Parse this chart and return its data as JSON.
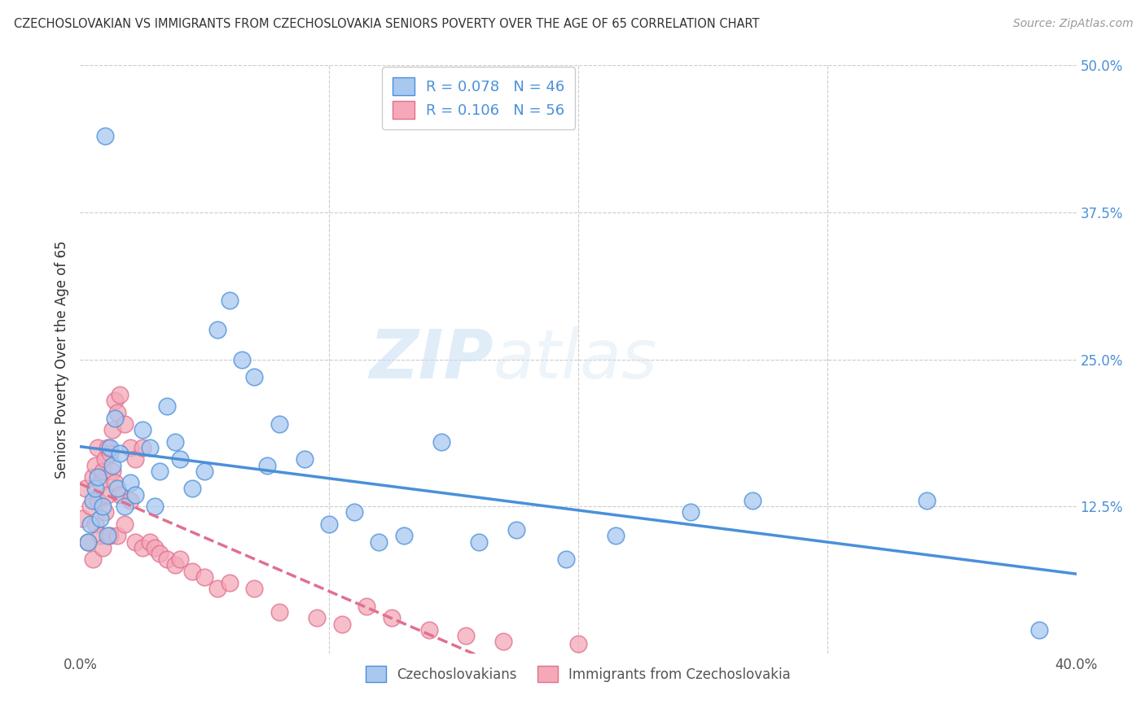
{
  "title": "CZECHOSLOVAKIAN VS IMMIGRANTS FROM CZECHOSLOVAKIA SENIORS POVERTY OVER THE AGE OF 65 CORRELATION CHART",
  "source": "Source: ZipAtlas.com",
  "ylabel": "Seniors Poverty Over the Age of 65",
  "xlim": [
    0.0,
    0.4
  ],
  "ylim": [
    0.0,
    0.5
  ],
  "xtick_vals": [
    0.0,
    0.1,
    0.2,
    0.3,
    0.4
  ],
  "xticklabels": [
    "0.0%",
    "",
    "",
    "",
    "40.0%"
  ],
  "ytick_vals": [
    0.0,
    0.125,
    0.25,
    0.375,
    0.5
  ],
  "yticklabels": [
    "",
    "12.5%",
    "25.0%",
    "37.5%",
    "50.0%"
  ],
  "legend1_R": "0.078",
  "legend1_N": "46",
  "legend2_R": "0.106",
  "legend2_N": "56",
  "color_blue": "#a8c8f0",
  "color_pink": "#f4a8b8",
  "line_blue": "#4a90d9",
  "line_pink": "#e07090",
  "watermark_zip": "ZIP",
  "watermark_atlas": "atlas",
  "legend_label1": "Czechoslovakians",
  "legend_label2": "Immigrants from Czechoslovakia",
  "blue_x": [
    0.003,
    0.004,
    0.005,
    0.006,
    0.007,
    0.008,
    0.009,
    0.01,
    0.011,
    0.012,
    0.013,
    0.014,
    0.015,
    0.016,
    0.018,
    0.02,
    0.022,
    0.025,
    0.028,
    0.03,
    0.032,
    0.035,
    0.038,
    0.04,
    0.045,
    0.05,
    0.055,
    0.06,
    0.065,
    0.07,
    0.075,
    0.08,
    0.09,
    0.1,
    0.11,
    0.12,
    0.13,
    0.145,
    0.16,
    0.175,
    0.195,
    0.215,
    0.245,
    0.27,
    0.34,
    0.385
  ],
  "blue_y": [
    0.095,
    0.11,
    0.13,
    0.14,
    0.15,
    0.115,
    0.125,
    0.44,
    0.1,
    0.175,
    0.16,
    0.2,
    0.14,
    0.17,
    0.125,
    0.145,
    0.135,
    0.19,
    0.175,
    0.125,
    0.155,
    0.21,
    0.18,
    0.165,
    0.14,
    0.155,
    0.275,
    0.3,
    0.25,
    0.235,
    0.16,
    0.195,
    0.165,
    0.11,
    0.12,
    0.095,
    0.1,
    0.18,
    0.095,
    0.105,
    0.08,
    0.1,
    0.12,
    0.13,
    0.13,
    0.02
  ],
  "pink_x": [
    0.001,
    0.002,
    0.003,
    0.004,
    0.005,
    0.005,
    0.006,
    0.006,
    0.007,
    0.007,
    0.008,
    0.008,
    0.009,
    0.009,
    0.01,
    0.01,
    0.011,
    0.011,
    0.012,
    0.012,
    0.013,
    0.013,
    0.014,
    0.014,
    0.015,
    0.015,
    0.016,
    0.016,
    0.018,
    0.018,
    0.02,
    0.02,
    0.022,
    0.022,
    0.025,
    0.025,
    0.028,
    0.03,
    0.032,
    0.035,
    0.038,
    0.04,
    0.045,
    0.05,
    0.055,
    0.06,
    0.07,
    0.08,
    0.095,
    0.105,
    0.115,
    0.125,
    0.14,
    0.155,
    0.17,
    0.2
  ],
  "pink_y": [
    0.115,
    0.14,
    0.095,
    0.125,
    0.08,
    0.15,
    0.16,
    0.11,
    0.13,
    0.175,
    0.1,
    0.145,
    0.09,
    0.155,
    0.12,
    0.165,
    0.135,
    0.175,
    0.1,
    0.17,
    0.155,
    0.19,
    0.145,
    0.215,
    0.1,
    0.205,
    0.135,
    0.22,
    0.11,
    0.195,
    0.13,
    0.175,
    0.095,
    0.165,
    0.09,
    0.175,
    0.095,
    0.09,
    0.085,
    0.08,
    0.075,
    0.08,
    0.07,
    0.065,
    0.055,
    0.06,
    0.055,
    0.035,
    0.03,
    0.025,
    0.04,
    0.03,
    0.02,
    0.015,
    0.01,
    0.008
  ]
}
